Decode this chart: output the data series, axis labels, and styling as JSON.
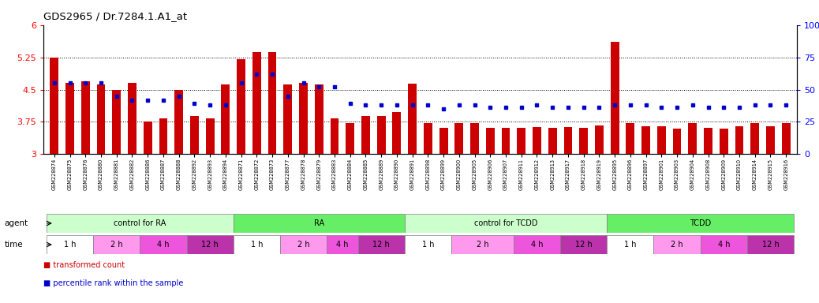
{
  "title": "GDS2965 / Dr.7284.1.A1_at",
  "samples": [
    "GSM228874",
    "GSM228875",
    "GSM228876",
    "GSM228880",
    "GSM228881",
    "GSM228882",
    "GSM228886",
    "GSM228887",
    "GSM228888",
    "GSM228892",
    "GSM228893",
    "GSM228894",
    "GSM228871",
    "GSM228872",
    "GSM228873",
    "GSM228877",
    "GSM228878",
    "GSM228879",
    "GSM228883",
    "GSM228884",
    "GSM228885",
    "GSM228889",
    "GSM228890",
    "GSM228891",
    "GSM228898",
    "GSM228899",
    "GSM228900",
    "GSM228905",
    "GSM228906",
    "GSM228907",
    "GSM228911",
    "GSM228912",
    "GSM228913",
    "GSM228917",
    "GSM228918",
    "GSM228919",
    "GSM228895",
    "GSM228896",
    "GSM228897",
    "GSM228901",
    "GSM228903",
    "GSM228904",
    "GSM228908",
    "GSM228909",
    "GSM228910",
    "GSM228914",
    "GSM228915",
    "GSM228916"
  ],
  "bar_values": [
    5.25,
    4.65,
    4.7,
    4.62,
    4.5,
    4.65,
    3.75,
    3.82,
    4.5,
    3.88,
    3.83,
    4.62,
    5.2,
    5.38,
    5.38,
    4.62,
    4.65,
    4.62,
    3.82,
    3.72,
    3.88,
    3.88,
    3.98,
    4.63,
    3.72,
    3.6,
    3.72,
    3.72,
    3.6,
    3.6,
    3.6,
    3.63,
    3.6,
    3.63,
    3.6,
    3.67,
    5.62,
    3.72,
    3.65,
    3.65,
    3.58,
    3.72,
    3.6,
    3.58,
    3.65,
    3.72,
    3.65,
    3.72
  ],
  "dot_values": [
    55,
    55,
    55,
    55,
    45,
    42,
    42,
    42,
    45,
    39,
    38,
    38,
    55,
    62,
    62,
    45,
    55,
    52,
    52,
    39,
    38,
    38,
    38,
    38,
    38,
    35,
    38,
    38,
    36,
    36,
    36,
    38,
    36,
    36,
    36,
    36,
    38,
    38,
    38,
    36,
    36,
    38,
    36,
    36,
    36,
    38,
    38,
    38
  ],
  "ylim_left": [
    3.0,
    6.0
  ],
  "ylim_right": [
    0,
    100
  ],
  "yticks_left": [
    3.0,
    3.75,
    4.5,
    5.25,
    6.0
  ],
  "ytick_labels_left": [
    "3",
    "3.75",
    "4.5",
    "5.25",
    "6"
  ],
  "yticks_right": [
    0,
    25,
    50,
    75,
    100
  ],
  "ytick_labels_right": [
    "0",
    "25",
    "50",
    "75",
    "100%"
  ],
  "hlines": [
    3.75,
    4.5,
    5.25
  ],
  "bar_color": "#cc0000",
  "dot_color": "#0000cc",
  "bar_bottom": 3.0,
  "agents": [
    {
      "label": "control for RA",
      "start": 0,
      "end": 12,
      "color": "#ccffcc"
    },
    {
      "label": "RA",
      "start": 12,
      "end": 23,
      "color": "#66ee66"
    },
    {
      "label": "control for TCDD",
      "start": 23,
      "end": 36,
      "color": "#ccffcc"
    },
    {
      "label": "TCDD",
      "start": 36,
      "end": 48,
      "color": "#66ee66"
    }
  ],
  "time_groups": [
    {
      "label": "1 h",
      "start": 0,
      "end": 3,
      "shade": 0
    },
    {
      "label": "2 h",
      "start": 3,
      "end": 6,
      "shade": 1
    },
    {
      "label": "4 h",
      "start": 6,
      "end": 9,
      "shade": 2
    },
    {
      "label": "12 h",
      "start": 9,
      "end": 12,
      "shade": 3
    },
    {
      "label": "1 h",
      "start": 12,
      "end": 15,
      "shade": 0
    },
    {
      "label": "2 h",
      "start": 15,
      "end": 18,
      "shade": 1
    },
    {
      "label": "4 h",
      "start": 18,
      "end": 20,
      "shade": 2
    },
    {
      "label": "12 h",
      "start": 20,
      "end": 23,
      "shade": 3
    },
    {
      "label": "1 h",
      "start": 23,
      "end": 26,
      "shade": 0
    },
    {
      "label": "2 h",
      "start": 26,
      "end": 30,
      "shade": 1
    },
    {
      "label": "4 h",
      "start": 30,
      "end": 33,
      "shade": 2
    },
    {
      "label": "12 h",
      "start": 33,
      "end": 36,
      "shade": 3
    },
    {
      "label": "1 h",
      "start": 36,
      "end": 39,
      "shade": 0
    },
    {
      "label": "2 h",
      "start": 39,
      "end": 42,
      "shade": 1
    },
    {
      "label": "4 h",
      "start": 42,
      "end": 45,
      "shade": 2
    },
    {
      "label": "12 h",
      "start": 45,
      "end": 48,
      "shade": 3
    }
  ],
  "time_colors": [
    "#ffffff",
    "#ff99ee",
    "#ee55dd",
    "#bb33aa"
  ],
  "legend_items": [
    {
      "label": "transformed count",
      "color": "#cc0000"
    },
    {
      "label": "percentile rank within the sample",
      "color": "#0000cc"
    }
  ],
  "bg_color": "#ffffff"
}
